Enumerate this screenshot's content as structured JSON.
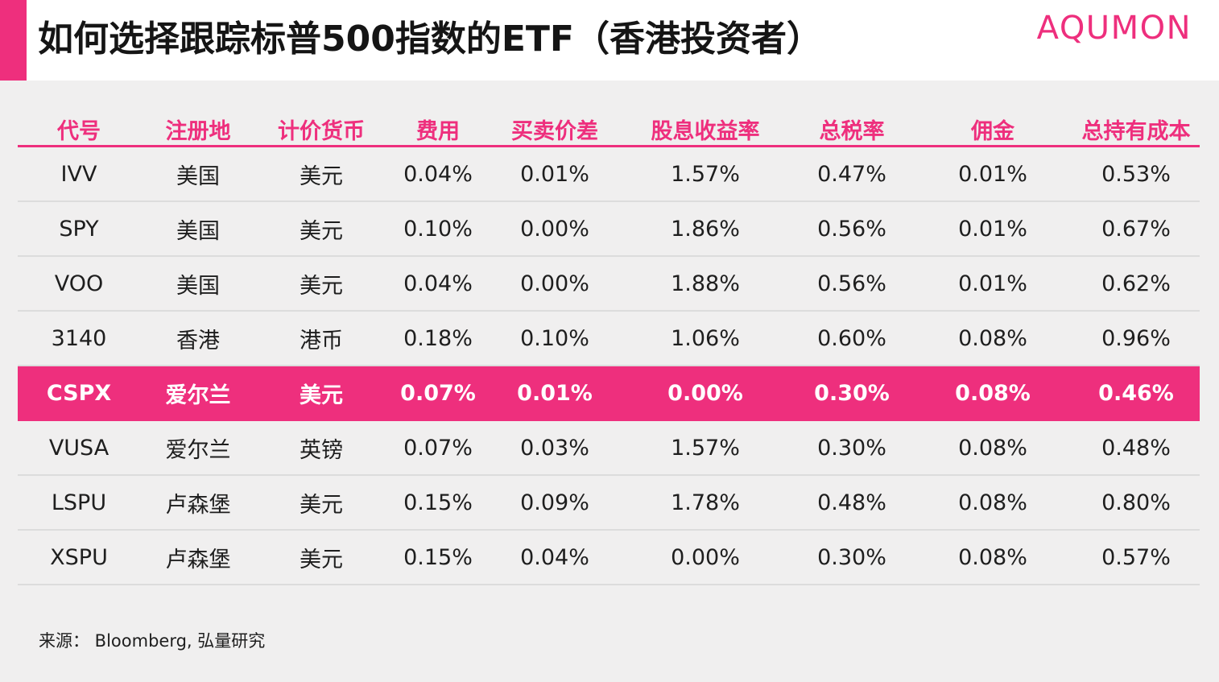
{
  "header": {
    "title": "如何选择跟踪标普500指数的ETF（香港投资者）",
    "logo": "AQUMON"
  },
  "colors": {
    "accent": "#ee2f7d",
    "highlight_row": "#ee2f7d",
    "background": "#f0efef",
    "header_bg": "#ffffff"
  },
  "table": {
    "columns": [
      "代号",
      "注册地",
      "计价货币",
      "费用",
      "买卖价差",
      "股息收益率",
      "总税率",
      "佣金",
      "总持有成本"
    ],
    "highlight_row_index": 4,
    "rows": [
      [
        "IVV",
        "美国",
        "美元",
        "0.04%",
        "0.01%",
        "1.57%",
        "0.47%",
        "0.01%",
        "0.53%"
      ],
      [
        "SPY",
        "美国",
        "美元",
        "0.10%",
        "0.00%",
        "1.86%",
        "0.56%",
        "0.01%",
        "0.67%"
      ],
      [
        "VOO",
        "美国",
        "美元",
        "0.04%",
        "0.00%",
        "1.88%",
        "0.56%",
        "0.01%",
        "0.62%"
      ],
      [
        "3140",
        "香港",
        "港币",
        "0.18%",
        "0.10%",
        "1.06%",
        "0.60%",
        "0.08%",
        "0.96%"
      ],
      [
        "CSPX",
        "爱尔兰",
        "美元",
        "0.07%",
        "0.01%",
        "0.00%",
        "0.30%",
        "0.08%",
        "0.46%"
      ],
      [
        "VUSA",
        "爱尔兰",
        "英镑",
        "0.07%",
        "0.03%",
        "1.57%",
        "0.30%",
        "0.08%",
        "0.48%"
      ],
      [
        "LSPU",
        "卢森堡",
        "美元",
        "0.15%",
        "0.09%",
        "1.78%",
        "0.48%",
        "0.08%",
        "0.80%"
      ],
      [
        "XSPU",
        "卢森堡",
        "美元",
        "0.15%",
        "0.04%",
        "0.00%",
        "0.30%",
        "0.08%",
        "0.57%"
      ]
    ]
  },
  "footer": {
    "source": "来源： Bloomberg, 弘量研究"
  }
}
